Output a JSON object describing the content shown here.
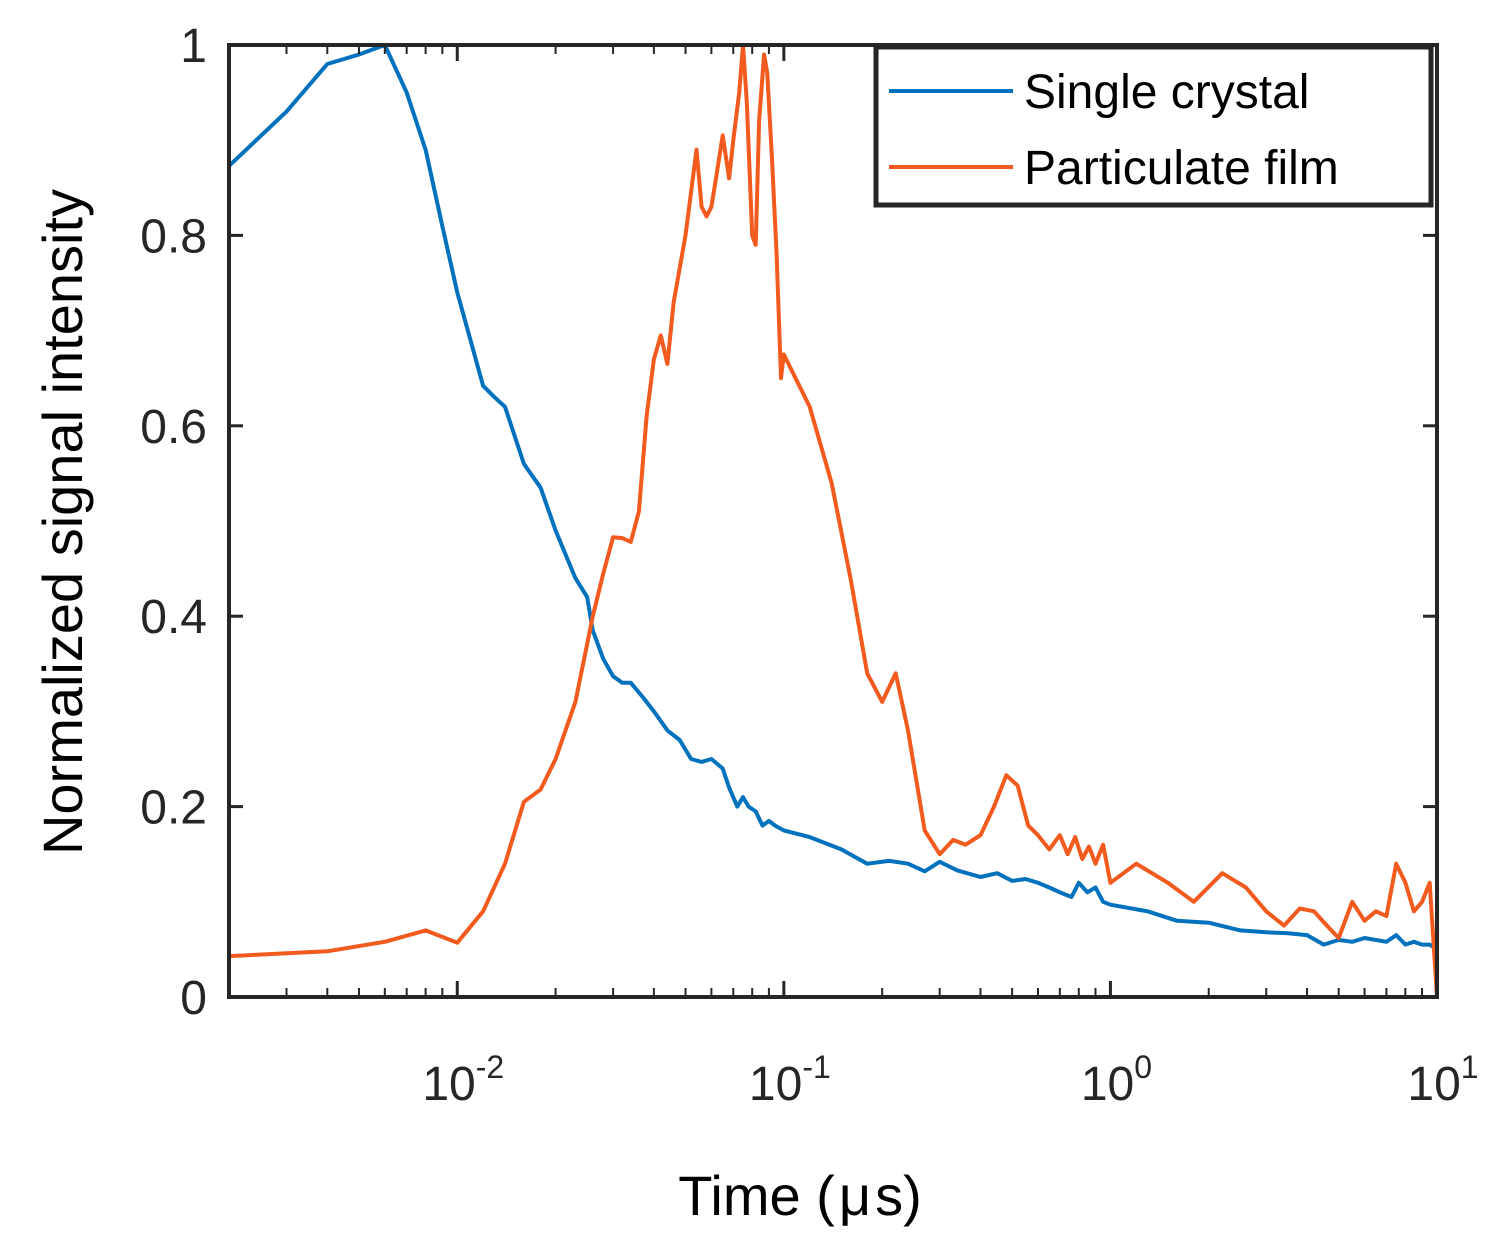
{
  "colors": {
    "single_crystal": "#0072BD",
    "particulate_film": "#F25A1E",
    "axis": "#262626"
  },
  "chart_data": {
    "type": "line",
    "xscale": "log",
    "xlabel": "Time (μs)",
    "xlabel_prefix": "Time (",
    "xlabel_unit": "μ",
    "xlabel_suffix": "s)",
    "ylabel": "Normalized signal intensity",
    "xlim": [
      0.002,
      10
    ],
    "ylim": [
      0,
      1
    ],
    "x_ticks": [
      {
        "base": "10",
        "exp": "-2",
        "value": 0.01
      },
      {
        "base": "10",
        "exp": "-1",
        "value": 0.1
      },
      {
        "base": "10",
        "exp": "0",
        "value": 1
      },
      {
        "base": "10",
        "exp": "1",
        "value": 10
      }
    ],
    "y_ticks": [
      {
        "label": "0",
        "value": 0
      },
      {
        "label": "0.2",
        "value": 0.2
      },
      {
        "label": "0.4",
        "value": 0.4
      },
      {
        "label": "0.6",
        "value": 0.6
      },
      {
        "label": "0.8",
        "value": 0.8
      },
      {
        "label": "1",
        "value": 1
      }
    ],
    "legend_position": "top-right",
    "series": [
      {
        "name": "Single crystal",
        "color_key": "single_crystal",
        "points": [
          [
            0.002,
            0.873
          ],
          [
            0.003,
            0.93
          ],
          [
            0.004,
            0.98
          ],
          [
            0.005,
            0.99
          ],
          [
            0.006,
            1.0
          ],
          [
            0.007,
            0.95
          ],
          [
            0.008,
            0.89
          ],
          [
            0.009,
            0.81
          ],
          [
            0.01,
            0.74
          ],
          [
            0.012,
            0.642
          ],
          [
            0.013,
            0.63
          ],
          [
            0.014,
            0.62
          ],
          [
            0.016,
            0.56
          ],
          [
            0.018,
            0.535
          ],
          [
            0.02,
            0.49
          ],
          [
            0.023,
            0.44
          ],
          [
            0.025,
            0.42
          ],
          [
            0.026,
            0.385
          ],
          [
            0.028,
            0.355
          ],
          [
            0.03,
            0.337
          ],
          [
            0.032,
            0.33
          ],
          [
            0.034,
            0.33
          ],
          [
            0.037,
            0.315
          ],
          [
            0.04,
            0.3
          ],
          [
            0.044,
            0.28
          ],
          [
            0.048,
            0.27
          ],
          [
            0.052,
            0.25
          ],
          [
            0.056,
            0.247
          ],
          [
            0.06,
            0.25
          ],
          [
            0.065,
            0.24
          ],
          [
            0.068,
            0.22
          ],
          [
            0.072,
            0.2
          ],
          [
            0.075,
            0.21
          ],
          [
            0.078,
            0.2
          ],
          [
            0.082,
            0.195
          ],
          [
            0.086,
            0.18
          ],
          [
            0.09,
            0.185
          ],
          [
            0.094,
            0.18
          ],
          [
            0.1,
            0.175
          ],
          [
            0.12,
            0.168
          ],
          [
            0.15,
            0.155
          ],
          [
            0.18,
            0.14
          ],
          [
            0.21,
            0.143
          ],
          [
            0.24,
            0.14
          ],
          [
            0.27,
            0.132
          ],
          [
            0.3,
            0.142
          ],
          [
            0.34,
            0.133
          ],
          [
            0.4,
            0.126
          ],
          [
            0.45,
            0.13
          ],
          [
            0.5,
            0.122
          ],
          [
            0.55,
            0.124
          ],
          [
            0.6,
            0.12
          ],
          [
            0.65,
            0.115
          ],
          [
            0.7,
            0.11
          ],
          [
            0.76,
            0.105
          ],
          [
            0.8,
            0.12
          ],
          [
            0.85,
            0.11
          ],
          [
            0.9,
            0.115
          ],
          [
            0.95,
            0.1
          ],
          [
            1.0,
            0.097
          ],
          [
            1.3,
            0.09
          ],
          [
            1.6,
            0.08
          ],
          [
            2.0,
            0.078
          ],
          [
            2.5,
            0.07
          ],
          [
            3.0,
            0.068
          ],
          [
            3.5,
            0.067
          ],
          [
            4.0,
            0.065
          ],
          [
            4.5,
            0.055
          ],
          [
            5.0,
            0.06
          ],
          [
            5.5,
            0.058
          ],
          [
            6.0,
            0.062
          ],
          [
            7.0,
            0.058
          ],
          [
            7.5,
            0.065
          ],
          [
            8.0,
            0.055
          ],
          [
            8.5,
            0.058
          ],
          [
            9.0,
            0.055
          ],
          [
            9.5,
            0.055
          ],
          [
            10.0,
            0.05
          ]
        ]
      },
      {
        "name": "Particulate film",
        "color_key": "particulate_film",
        "points": [
          [
            0.002,
            0.043
          ],
          [
            0.004,
            0.048
          ],
          [
            0.006,
            0.058
          ],
          [
            0.008,
            0.07
          ],
          [
            0.01,
            0.057
          ],
          [
            0.012,
            0.09
          ],
          [
            0.014,
            0.14
          ],
          [
            0.016,
            0.205
          ],
          [
            0.018,
            0.218
          ],
          [
            0.02,
            0.25
          ],
          [
            0.023,
            0.31
          ],
          [
            0.026,
            0.4
          ],
          [
            0.028,
            0.445
          ],
          [
            0.03,
            0.483
          ],
          [
            0.032,
            0.482
          ],
          [
            0.034,
            0.478
          ],
          [
            0.036,
            0.51
          ],
          [
            0.038,
            0.61
          ],
          [
            0.04,
            0.67
          ],
          [
            0.042,
            0.695
          ],
          [
            0.044,
            0.665
          ],
          [
            0.046,
            0.73
          ],
          [
            0.05,
            0.8
          ],
          [
            0.054,
            0.89
          ],
          [
            0.056,
            0.83
          ],
          [
            0.058,
            0.82
          ],
          [
            0.06,
            0.83
          ],
          [
            0.062,
            0.86
          ],
          [
            0.065,
            0.905
          ],
          [
            0.068,
            0.86
          ],
          [
            0.07,
            0.9
          ],
          [
            0.073,
            0.95
          ],
          [
            0.075,
            1.0
          ],
          [
            0.077,
            0.94
          ],
          [
            0.08,
            0.8
          ],
          [
            0.082,
            0.79
          ],
          [
            0.084,
            0.92
          ],
          [
            0.087,
            0.99
          ],
          [
            0.089,
            0.97
          ],
          [
            0.092,
            0.88
          ],
          [
            0.095,
            0.78
          ],
          [
            0.098,
            0.65
          ],
          [
            0.1,
            0.675
          ],
          [
            0.12,
            0.62
          ],
          [
            0.14,
            0.54
          ],
          [
            0.16,
            0.44
          ],
          [
            0.18,
            0.34
          ],
          [
            0.2,
            0.31
          ],
          [
            0.22,
            0.34
          ],
          [
            0.24,
            0.28
          ],
          [
            0.27,
            0.175
          ],
          [
            0.3,
            0.15
          ],
          [
            0.33,
            0.165
          ],
          [
            0.36,
            0.16
          ],
          [
            0.4,
            0.17
          ],
          [
            0.44,
            0.2
          ],
          [
            0.48,
            0.233
          ],
          [
            0.52,
            0.222
          ],
          [
            0.56,
            0.18
          ],
          [
            0.6,
            0.17
          ],
          [
            0.65,
            0.155
          ],
          [
            0.7,
            0.17
          ],
          [
            0.74,
            0.15
          ],
          [
            0.78,
            0.168
          ],
          [
            0.82,
            0.145
          ],
          [
            0.86,
            0.158
          ],
          [
            0.9,
            0.14
          ],
          [
            0.95,
            0.16
          ],
          [
            1.0,
            0.12
          ],
          [
            1.2,
            0.14
          ],
          [
            1.5,
            0.12
          ],
          [
            1.8,
            0.1
          ],
          [
            2.2,
            0.13
          ],
          [
            2.6,
            0.115
          ],
          [
            3.0,
            0.09
          ],
          [
            3.4,
            0.075
          ],
          [
            3.8,
            0.093
          ],
          [
            4.2,
            0.09
          ],
          [
            4.6,
            0.075
          ],
          [
            5.0,
            0.062
          ],
          [
            5.5,
            0.1
          ],
          [
            6.0,
            0.08
          ],
          [
            6.5,
            0.09
          ],
          [
            7.0,
            0.085
          ],
          [
            7.5,
            0.14
          ],
          [
            8.0,
            0.12
          ],
          [
            8.5,
            0.09
          ],
          [
            9.0,
            0.1
          ],
          [
            9.5,
            0.12
          ],
          [
            10.0,
            0.0
          ]
        ]
      }
    ]
  }
}
